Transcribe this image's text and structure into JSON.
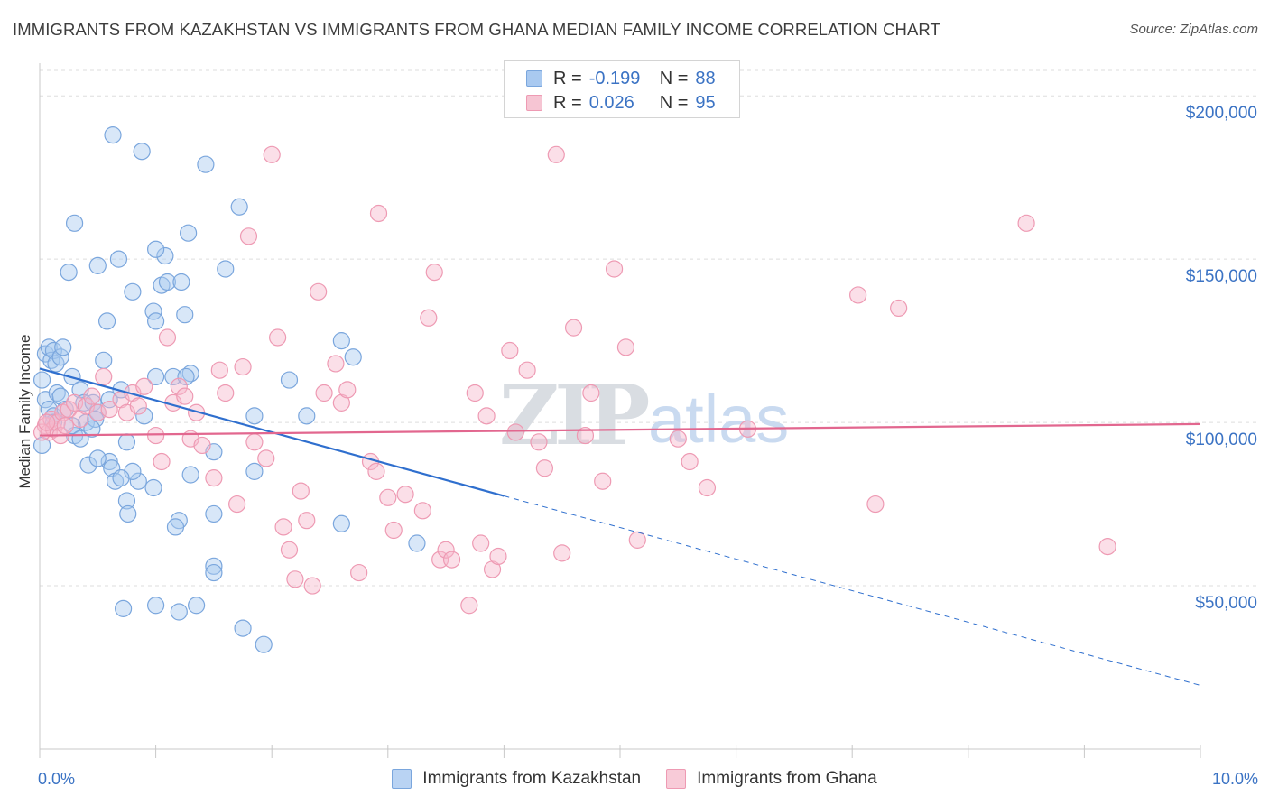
{
  "header": {
    "title": "IMMIGRANTS FROM KAZAKHSTAN VS IMMIGRANTS FROM GHANA MEDIAN FAMILY INCOME CORRELATION CHART",
    "source": "Source: ZipAtlas.com"
  },
  "legend": {
    "series": [
      {
        "r_label": "R =",
        "r_value": "-0.199",
        "n_label": "N =",
        "n_value": "88"
      },
      {
        "r_label": "R =",
        "r_value": "0.026",
        "n_label": "N =",
        "n_value": "95"
      }
    ]
  },
  "bottom_legend": {
    "items": [
      {
        "label": "Immigrants from Kazakhstan"
      },
      {
        "label": "Immigrants from Ghana"
      }
    ]
  },
  "watermark": {
    "part1": "ZIP",
    "part2": "atlas"
  },
  "colors": {
    "blue_fill": "#a9c9f0",
    "blue_stroke": "#7aa6dd",
    "blue_line": "#2f6fce",
    "pink_fill": "#f6b9cb",
    "pink_stroke": "#ee9ab3",
    "pink_line": "#e2678f",
    "grid": "#dddddd",
    "tick_text": "#3b73c4"
  },
  "chart_data": {
    "type": "scatter",
    "title": "IMMIGRANTS FROM KAZAKHSTAN VS IMMIGRANTS FROM GHANA MEDIAN FAMILY INCOME CORRELATION CHART",
    "xlabel": "",
    "ylabel": "Median Family Income",
    "xlim": [
      0,
      10
    ],
    "ylim": [
      0,
      210000
    ],
    "x_tick_labels": [
      "0.0%",
      "10.0%"
    ],
    "y_tick_labels": [
      "$50,000",
      "$100,000",
      "$150,000",
      "$200,000"
    ],
    "y_ticks": [
      50000,
      100000,
      150000,
      200000
    ],
    "grid": "horizontal dashed",
    "series": [
      {
        "name": "Immigrants from Kazakhstan",
        "color": "#a9c9f0",
        "trend": {
          "x": [
            0.0,
            4.0
          ],
          "y": [
            116500,
            77500
          ],
          "dashed_extension": {
            "x": [
              4.0,
              10.0
            ],
            "y": [
              77500,
              19500
            ]
          }
        },
        "points": [
          {
            "x": 0.02,
            "y": 113000
          },
          {
            "x": 0.05,
            "y": 121000
          },
          {
            "x": 0.08,
            "y": 123000
          },
          {
            "x": 0.1,
            "y": 119000
          },
          {
            "x": 0.12,
            "y": 122000
          },
          {
            "x": 0.14,
            "y": 118000
          },
          {
            "x": 0.18,
            "y": 120000
          },
          {
            "x": 0.2,
            "y": 123000
          },
          {
            "x": 0.05,
            "y": 107000
          },
          {
            "x": 0.08,
            "y": 104000
          },
          {
            "x": 0.12,
            "y": 102000
          },
          {
            "x": 0.15,
            "y": 109000
          },
          {
            "x": 0.18,
            "y": 108000
          },
          {
            "x": 0.28,
            "y": 114000
          },
          {
            "x": 0.35,
            "y": 110000
          },
          {
            "x": 0.38,
            "y": 106000
          },
          {
            "x": 0.4,
            "y": 100000
          },
          {
            "x": 0.3,
            "y": 96000
          },
          {
            "x": 0.28,
            "y": 99000
          },
          {
            "x": 0.22,
            "y": 104000
          },
          {
            "x": 0.46,
            "y": 106000
          },
          {
            "x": 0.5,
            "y": 103000
          },
          {
            "x": 0.55,
            "y": 119000
          },
          {
            "x": 0.48,
            "y": 101000
          },
          {
            "x": 0.6,
            "y": 107000
          },
          {
            "x": 0.35,
            "y": 95000
          },
          {
            "x": 0.42,
            "y": 87000
          },
          {
            "x": 0.6,
            "y": 88000
          },
          {
            "x": 0.62,
            "y": 86000
          },
          {
            "x": 0.7,
            "y": 110000
          },
          {
            "x": 0.75,
            "y": 94000
          },
          {
            "x": 0.9,
            "y": 102000
          },
          {
            "x": 0.98,
            "y": 80000
          },
          {
            "x": 0.85,
            "y": 82000
          },
          {
            "x": 0.8,
            "y": 85000
          },
          {
            "x": 0.65,
            "y": 82000
          },
          {
            "x": 1.0,
            "y": 114000
          },
          {
            "x": 1.15,
            "y": 114000
          },
          {
            "x": 1.3,
            "y": 115000
          },
          {
            "x": 1.26,
            "y": 114000
          },
          {
            "x": 0.75,
            "y": 76000
          },
          {
            "x": 0.76,
            "y": 72000
          },
          {
            "x": 1.3,
            "y": 84000
          },
          {
            "x": 1.2,
            "y": 70000
          },
          {
            "x": 1.17,
            "y": 68000
          },
          {
            "x": 1.5,
            "y": 72000
          },
          {
            "x": 1.5,
            "y": 91000
          },
          {
            "x": 1.85,
            "y": 102000
          },
          {
            "x": 1.85,
            "y": 85000
          },
          {
            "x": 2.15,
            "y": 113000
          },
          {
            "x": 2.3,
            "y": 102000
          },
          {
            "x": 2.6,
            "y": 125000
          },
          {
            "x": 2.7,
            "y": 120000
          },
          {
            "x": 0.3,
            "y": 161000
          },
          {
            "x": 0.25,
            "y": 146000
          },
          {
            "x": 0.5,
            "y": 148000
          },
          {
            "x": 0.68,
            "y": 150000
          },
          {
            "x": 0.58,
            "y": 131000
          },
          {
            "x": 0.8,
            "y": 140000
          },
          {
            "x": 0.98,
            "y": 134000
          },
          {
            "x": 1.05,
            "y": 142000
          },
          {
            "x": 1.1,
            "y": 143000
          },
          {
            "x": 1.22,
            "y": 143000
          },
          {
            "x": 1.0,
            "y": 131000
          },
          {
            "x": 1.25,
            "y": 133000
          },
          {
            "x": 1.08,
            "y": 151000
          },
          {
            "x": 1.0,
            "y": 153000
          },
          {
            "x": 1.6,
            "y": 147000
          },
          {
            "x": 1.28,
            "y": 158000
          },
          {
            "x": 1.72,
            "y": 166000
          },
          {
            "x": 1.43,
            "y": 179000
          },
          {
            "x": 0.88,
            "y": 183000
          },
          {
            "x": 0.63,
            "y": 188000
          },
          {
            "x": 1.5,
            "y": 56000
          },
          {
            "x": 1.5,
            "y": 54000
          },
          {
            "x": 0.72,
            "y": 43000
          },
          {
            "x": 1.0,
            "y": 44000
          },
          {
            "x": 1.2,
            "y": 42000
          },
          {
            "x": 1.35,
            "y": 44000
          },
          {
            "x": 1.75,
            "y": 37000
          },
          {
            "x": 1.93,
            "y": 32000
          },
          {
            "x": 2.6,
            "y": 69000
          },
          {
            "x": 3.25,
            "y": 63000
          },
          {
            "x": 0.02,
            "y": 93000
          },
          {
            "x": 0.5,
            "y": 89000
          },
          {
            "x": 0.7,
            "y": 83000
          },
          {
            "x": 0.45,
            "y": 98000
          },
          {
            "x": 0.12,
            "y": 100000
          }
        ]
      },
      {
        "name": "Immigrants from Ghana",
        "color": "#f6b9cb",
        "trend": {
          "x": [
            0.0,
            10.0
          ],
          "y": [
            96000,
            99500
          ]
        },
        "points": [
          {
            "x": 0.05,
            "y": 99000
          },
          {
            "x": 0.08,
            "y": 97000
          },
          {
            "x": 0.1,
            "y": 101000
          },
          {
            "x": 0.12,
            "y": 98000
          },
          {
            "x": 0.15,
            "y": 100000
          },
          {
            "x": 0.18,
            "y": 96000
          },
          {
            "x": 0.2,
            "y": 103000
          },
          {
            "x": 0.22,
            "y": 99000
          },
          {
            "x": 0.25,
            "y": 104000
          },
          {
            "x": 0.3,
            "y": 106000
          },
          {
            "x": 0.35,
            "y": 101000
          },
          {
            "x": 0.4,
            "y": 105000
          },
          {
            "x": 0.45,
            "y": 108000
          },
          {
            "x": 0.5,
            "y": 103000
          },
          {
            "x": 0.55,
            "y": 114000
          },
          {
            "x": 0.6,
            "y": 104000
          },
          {
            "x": 0.7,
            "y": 107000
          },
          {
            "x": 0.75,
            "y": 103000
          },
          {
            "x": 0.8,
            "y": 109000
          },
          {
            "x": 0.85,
            "y": 105000
          },
          {
            "x": 0.9,
            "y": 111000
          },
          {
            "x": 1.0,
            "y": 96000
          },
          {
            "x": 1.05,
            "y": 88000
          },
          {
            "x": 1.1,
            "y": 126000
          },
          {
            "x": 1.15,
            "y": 106000
          },
          {
            "x": 1.2,
            "y": 111000
          },
          {
            "x": 1.25,
            "y": 108000
          },
          {
            "x": 1.3,
            "y": 95000
          },
          {
            "x": 1.35,
            "y": 103000
          },
          {
            "x": 1.4,
            "y": 93000
          },
          {
            "x": 1.5,
            "y": 83000
          },
          {
            "x": 1.55,
            "y": 116000
          },
          {
            "x": 1.6,
            "y": 109000
          },
          {
            "x": 1.7,
            "y": 75000
          },
          {
            "x": 1.75,
            "y": 117000
          },
          {
            "x": 1.8,
            "y": 157000
          },
          {
            "x": 1.85,
            "y": 94000
          },
          {
            "x": 1.95,
            "y": 89000
          },
          {
            "x": 2.0,
            "y": 182000
          },
          {
            "x": 2.05,
            "y": 126000
          },
          {
            "x": 2.1,
            "y": 68000
          },
          {
            "x": 2.15,
            "y": 61000
          },
          {
            "x": 2.2,
            "y": 52000
          },
          {
            "x": 2.25,
            "y": 79000
          },
          {
            "x": 2.3,
            "y": 70000
          },
          {
            "x": 2.35,
            "y": 50000
          },
          {
            "x": 2.4,
            "y": 140000
          },
          {
            "x": 2.45,
            "y": 109000
          },
          {
            "x": 2.55,
            "y": 118000
          },
          {
            "x": 2.6,
            "y": 106000
          },
          {
            "x": 2.65,
            "y": 110000
          },
          {
            "x": 2.75,
            "y": 54000
          },
          {
            "x": 2.85,
            "y": 88000
          },
          {
            "x": 2.9,
            "y": 85000
          },
          {
            "x": 2.92,
            "y": 164000
          },
          {
            "x": 3.0,
            "y": 77000
          },
          {
            "x": 3.05,
            "y": 67000
          },
          {
            "x": 3.15,
            "y": 78000
          },
          {
            "x": 3.3,
            "y": 73000
          },
          {
            "x": 3.35,
            "y": 132000
          },
          {
            "x": 3.4,
            "y": 146000
          },
          {
            "x": 3.45,
            "y": 58000
          },
          {
            "x": 3.5,
            "y": 61000
          },
          {
            "x": 3.55,
            "y": 58000
          },
          {
            "x": 3.7,
            "y": 44000
          },
          {
            "x": 3.75,
            "y": 109000
          },
          {
            "x": 3.8,
            "y": 63000
          },
          {
            "x": 3.85,
            "y": 102000
          },
          {
            "x": 3.9,
            "y": 55000
          },
          {
            "x": 3.95,
            "y": 59000
          },
          {
            "x": 4.05,
            "y": 122000
          },
          {
            "x": 4.1,
            "y": 97000
          },
          {
            "x": 4.2,
            "y": 116000
          },
          {
            "x": 4.3,
            "y": 94000
          },
          {
            "x": 4.35,
            "y": 86000
          },
          {
            "x": 4.45,
            "y": 182000
          },
          {
            "x": 4.5,
            "y": 60000
          },
          {
            "x": 4.6,
            "y": 129000
          },
          {
            "x": 4.7,
            "y": 96000
          },
          {
            "x": 4.75,
            "y": 109000
          },
          {
            "x": 4.85,
            "y": 82000
          },
          {
            "x": 4.95,
            "y": 147000
          },
          {
            "x": 5.05,
            "y": 123000
          },
          {
            "x": 5.15,
            "y": 64000
          },
          {
            "x": 5.5,
            "y": 95000
          },
          {
            "x": 5.6,
            "y": 88000
          },
          {
            "x": 5.75,
            "y": 80000
          },
          {
            "x": 6.1,
            "y": 98000
          },
          {
            "x": 7.05,
            "y": 139000
          },
          {
            "x": 7.2,
            "y": 75000
          },
          {
            "x": 7.4,
            "y": 135000
          },
          {
            "x": 8.5,
            "y": 161000
          },
          {
            "x": 9.2,
            "y": 62000
          },
          {
            "x": 0.02,
            "y": 97000
          },
          {
            "x": 0.06,
            "y": 100000
          }
        ]
      }
    ]
  }
}
